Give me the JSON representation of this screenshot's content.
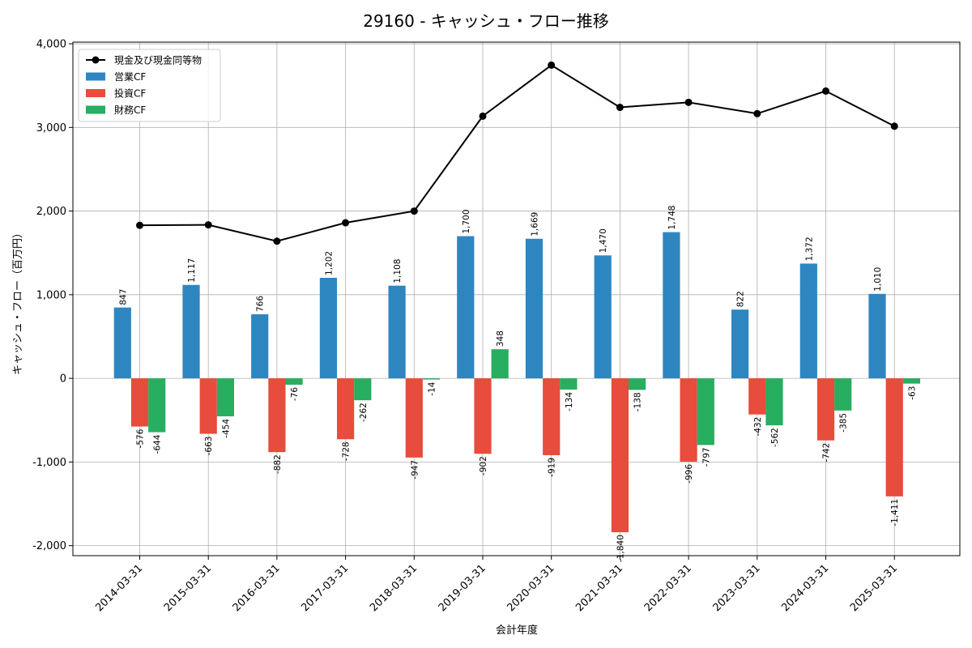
{
  "chart_data": {
    "type": "bar",
    "title": "29160 - キャッシュ・フロー推移",
    "xlabel": "会計年度",
    "ylabel": "キャッシュ・フロー（百万円）",
    "ylim": [
      -2120,
      4020
    ],
    "yticks": [
      -2000,
      -1000,
      0,
      1000,
      2000,
      3000,
      4000
    ],
    "ytick_labels": [
      "-2,000",
      "-1,000",
      "0",
      "1,000",
      "2,000",
      "3,000",
      "4,000"
    ],
    "grid": true,
    "legend_position": "top-left",
    "categories": [
      "2014-03-31",
      "2015-03-31",
      "2016-03-31",
      "2017-03-31",
      "2018-03-31",
      "2019-03-31",
      "2020-03-31",
      "2021-03-31",
      "2022-03-31",
      "2023-03-31",
      "2024-03-31",
      "2025-03-31"
    ],
    "series": [
      {
        "name": "営業CF",
        "type": "bar",
        "color": "#2e86c1",
        "values": [
          847,
          1117,
          766,
          1202,
          1108,
          1700,
          1669,
          1470,
          1748,
          822,
          1372,
          1010
        ],
        "labels": [
          "847",
          "1,117",
          "766",
          "1,202",
          "1,108",
          "1,700",
          "1,669",
          "1,470",
          "1,748",
          "822",
          "1,372",
          "1,010"
        ]
      },
      {
        "name": "投資CF",
        "type": "bar",
        "color": "#e74c3c",
        "values": [
          -576,
          -663,
          -882,
          -728,
          -947,
          -902,
          -919,
          -1840,
          -996,
          -432,
          -742,
          -1411
        ],
        "labels": [
          "-576",
          "-663",
          "-882",
          "-728",
          "-947",
          "-902",
          "-919",
          "-1,840",
          "-996",
          "-432",
          "-742",
          "-1,411"
        ]
      },
      {
        "name": "財務CF",
        "type": "bar",
        "color": "#27ae60",
        "values": [
          -644,
          -454,
          -76,
          -262,
          -14,
          348,
          -134,
          -138,
          -797,
          -562,
          -385,
          -63
        ],
        "labels": [
          "-644",
          "-454",
          "-76",
          "-262",
          "-14",
          "348",
          "-134",
          "-138",
          "-797",
          "-562",
          "-385",
          "-63"
        ]
      },
      {
        "name": "現金及び現金同等物",
        "type": "line",
        "color": "#000000",
        "values": [
          1830,
          1835,
          1640,
          1860,
          2000,
          3135,
          3745,
          3240,
          3300,
          3165,
          3435,
          3015
        ]
      }
    ]
  }
}
